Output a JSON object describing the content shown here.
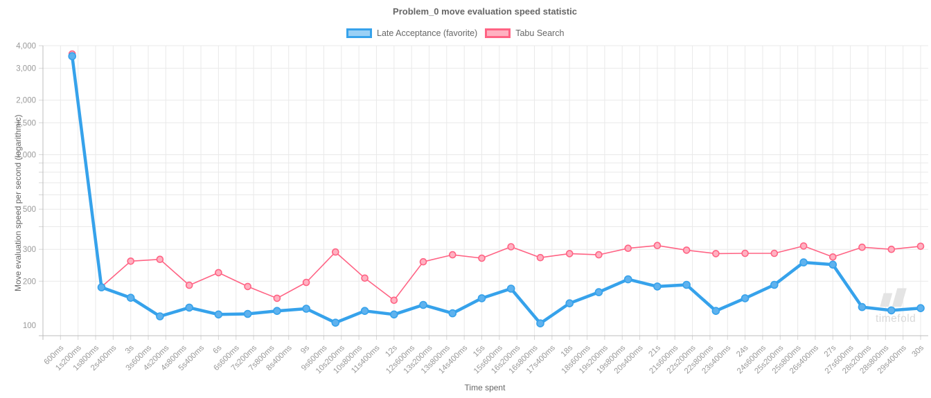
{
  "title": "Problem_0 move evaluation speed statistic",
  "legend": {
    "items": [
      {
        "id": "late-acceptance",
        "label": "Late Acceptance (favorite)",
        "border_color": "#36A2EB",
        "fill_color": "#9AD0F5"
      },
      {
        "id": "tabu-search",
        "label": "Tabu Search",
        "border_color": "#FF6384",
        "fill_color": "#FFB1C1"
      }
    ]
  },
  "watermark_text": "timefold",
  "axes": {
    "xlabel": "Time spent",
    "ylabel": "Move evaluation speed per second (logarithmic)"
  },
  "chart_data": {
    "type": "line",
    "title": "Problem_0 move evaluation speed statistic",
    "xlabel": "Time spent",
    "ylabel": "Move evaluation speed per second (logarithmic)",
    "x_scale": "linear-time",
    "y_scale": "log",
    "xlim_ms": [
      0,
      30300
    ],
    "ylim": [
      100,
      4000
    ],
    "grid": true,
    "legend_position": "top",
    "x_tick_step_ms": 600,
    "x_tick_labels": [
      "600ms",
      "1s200ms",
      "1s800ms",
      "2s400ms",
      "3s",
      "3s600ms",
      "4s200ms",
      "4s800ms",
      "5s400ms",
      "6s",
      "6s600ms",
      "7s200ms",
      "7s800ms",
      "8s400ms",
      "9s",
      "9s600ms",
      "10s200ms",
      "10s800ms",
      "11s400ms",
      "12s",
      "12s600ms",
      "13s200ms",
      "13s800ms",
      "14s400ms",
      "15s",
      "15s600ms",
      "16s200ms",
      "16s800ms",
      "17s400ms",
      "18s",
      "18s600ms",
      "19s200ms",
      "19s800ms",
      "20s400ms",
      "21s",
      "21s600ms",
      "22s200ms",
      "22s800ms",
      "23s400ms",
      "24s",
      "24s600ms",
      "25s200ms",
      "25s800ms",
      "26s400ms",
      "27s",
      "27s600ms",
      "28s200ms",
      "28s800ms",
      "29s400ms",
      "30s"
    ],
    "y_gridlines": [
      100,
      200,
      300,
      400,
      500,
      600,
      700,
      800,
      900,
      1000,
      1500,
      2000,
      3000,
      4000
    ],
    "y_ticks": [
      {
        "v": 100,
        "label": "100"
      },
      {
        "v": 200,
        "label": "200"
      },
      {
        "v": 300,
        "label": "300"
      },
      {
        "v": 500,
        "label": "500"
      },
      {
        "v": 1000,
        "label": "1,000"
      },
      {
        "v": 1500,
        "label": "1,500"
      },
      {
        "v": 2000,
        "label": "2,000"
      },
      {
        "v": 3000,
        "label": "3,000"
      },
      {
        "v": 4000,
        "label": "4,000"
      }
    ],
    "x_s": [
      1,
      2,
      3,
      4,
      5,
      6,
      7,
      8,
      9,
      10,
      11,
      12,
      13,
      14,
      15,
      16,
      17,
      18,
      19,
      20,
      21,
      22,
      23,
      24,
      25,
      26,
      27,
      28,
      29,
      30
    ],
    "series": [
      {
        "id": "late-acceptance",
        "name": "Late Acceptance (favorite)",
        "color": "#36A2EB",
        "point_fill": "#5FB2EE",
        "line_width": 4.5,
        "point_radius": 5,
        "values": [
          3500,
          185,
          162,
          128,
          143,
          131,
          132,
          137,
          141,
          118,
          137,
          131,
          148,
          133,
          161,
          182,
          117,
          151,
          174,
          205,
          187,
          191,
          137,
          161,
          191,
          254,
          247,
          144,
          138,
          142
        ]
      },
      {
        "id": "tabu-search",
        "name": "Tabu Search",
        "color": "#FF6384",
        "point_fill": "#FFB1C1",
        "line_width": 1.6,
        "point_radius": 4.5,
        "values": [
          3600,
          186,
          258,
          264,
          190,
          223,
          187,
          161,
          197,
          290,
          208,
          157,
          256,
          280,
          268,
          310,
          270,
          284,
          280,
          304,
          315,
          297,
          284,
          285,
          285,
          313,
          272,
          308,
          300,
          312
        ]
      }
    ]
  }
}
